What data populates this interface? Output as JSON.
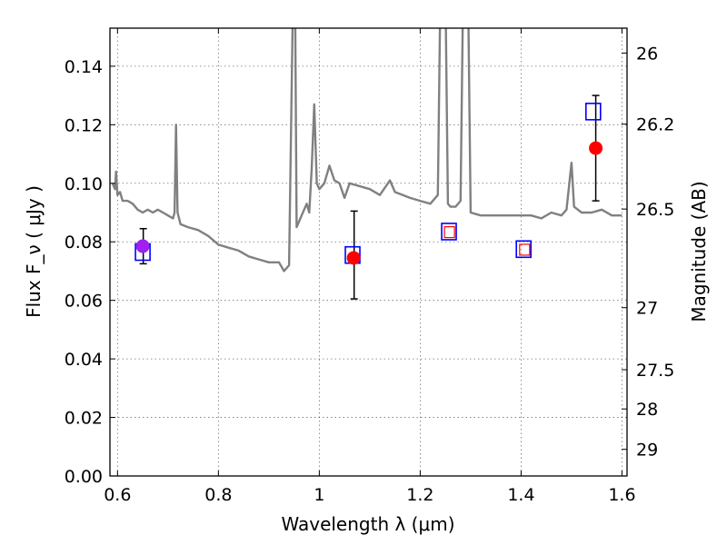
{
  "chart_data": {
    "type": "scatter",
    "title": "",
    "xlabel": "Wavelength  λ (μm)",
    "ylabel": "Flux  F_ν  ( μJy )",
    "y2label": "Magnitude (AB)",
    "xlim": [
      0.585,
      1.61
    ],
    "ylim": [
      0.0,
      0.153
    ],
    "grid": true,
    "x_ticks": [
      0.6,
      0.8,
      1.0,
      1.2,
      1.4,
      1.6
    ],
    "x_tick_labels": [
      "0.6",
      "0.8",
      "1",
      "1.2",
      "1.4",
      "1.6"
    ],
    "y_ticks": [
      0.0,
      0.02,
      0.04,
      0.06,
      0.08,
      0.1,
      0.12,
      0.14
    ],
    "y_tick_labels": [
      "0.00",
      "0.02",
      "0.04",
      "0.06",
      "0.08",
      "0.10",
      "0.12",
      "0.14"
    ],
    "y2_ticks": [
      {
        "label": "26",
        "flux": 0.1445
      },
      {
        "label": "26.2",
        "flux": 0.1202
      },
      {
        "label": "26.5",
        "flux": 0.0912
      },
      {
        "label": "27",
        "flux": 0.0575
      },
      {
        "label": "27.5",
        "flux": 0.0363
      },
      {
        "label": "28",
        "flux": 0.0229
      },
      {
        "label": "29",
        "flux": 0.0091
      }
    ],
    "series": [
      {
        "kind": "line",
        "color": "#808080",
        "points": [
          [
            0.59,
            0.1
          ],
          [
            0.595,
            0.098
          ],
          [
            0.597,
            0.104
          ],
          [
            0.6,
            0.096
          ],
          [
            0.605,
            0.097
          ],
          [
            0.61,
            0.094
          ],
          [
            0.62,
            0.094
          ],
          [
            0.63,
            0.093
          ],
          [
            0.64,
            0.091
          ],
          [
            0.65,
            0.09
          ],
          [
            0.66,
            0.091
          ],
          [
            0.67,
            0.09
          ],
          [
            0.68,
            0.091
          ],
          [
            0.69,
            0.09
          ],
          [
            0.7,
            0.089
          ],
          [
            0.71,
            0.088
          ],
          [
            0.713,
            0.09
          ],
          [
            0.716,
            0.12
          ],
          [
            0.719,
            0.09
          ],
          [
            0.725,
            0.086
          ],
          [
            0.74,
            0.085
          ],
          [
            0.76,
            0.084
          ],
          [
            0.78,
            0.082
          ],
          [
            0.8,
            0.079
          ],
          [
            0.82,
            0.078
          ],
          [
            0.84,
            0.077
          ],
          [
            0.86,
            0.075
          ],
          [
            0.88,
            0.074
          ],
          [
            0.9,
            0.073
          ],
          [
            0.92,
            0.073
          ],
          [
            0.93,
            0.07
          ],
          [
            0.94,
            0.072
          ],
          [
            0.948,
            0.165
          ],
          [
            0.952,
            0.165
          ],
          [
            0.955,
            0.085
          ],
          [
            0.965,
            0.089
          ],
          [
            0.975,
            0.093
          ],
          [
            0.98,
            0.09
          ],
          [
            0.985,
            0.105
          ],
          [
            0.99,
            0.127
          ],
          [
            0.995,
            0.1
          ],
          [
            1.0,
            0.098
          ],
          [
            1.01,
            0.1
          ],
          [
            1.02,
            0.106
          ],
          [
            1.03,
            0.101
          ],
          [
            1.04,
            0.1
          ],
          [
            1.05,
            0.095
          ],
          [
            1.06,
            0.1
          ],
          [
            1.08,
            0.099
          ],
          [
            1.1,
            0.098
          ],
          [
            1.12,
            0.096
          ],
          [
            1.14,
            0.101
          ],
          [
            1.15,
            0.097
          ],
          [
            1.18,
            0.095
          ],
          [
            1.2,
            0.094
          ],
          [
            1.22,
            0.093
          ],
          [
            1.235,
            0.096
          ],
          [
            1.24,
            0.165
          ],
          [
            1.25,
            0.165
          ],
          [
            1.255,
            0.093
          ],
          [
            1.26,
            0.092
          ],
          [
            1.27,
            0.092
          ],
          [
            1.28,
            0.094
          ],
          [
            1.285,
            0.165
          ],
          [
            1.295,
            0.165
          ],
          [
            1.3,
            0.09
          ],
          [
            1.32,
            0.089
          ],
          [
            1.34,
            0.089
          ],
          [
            1.36,
            0.089
          ],
          [
            1.38,
            0.089
          ],
          [
            1.4,
            0.089
          ],
          [
            1.42,
            0.089
          ],
          [
            1.44,
            0.088
          ],
          [
            1.46,
            0.09
          ],
          [
            1.48,
            0.089
          ],
          [
            1.49,
            0.091
          ],
          [
            1.5,
            0.107
          ],
          [
            1.505,
            0.092
          ],
          [
            1.52,
            0.09
          ],
          [
            1.54,
            0.09
          ],
          [
            1.56,
            0.091
          ],
          [
            1.58,
            0.089
          ],
          [
            1.6,
            0.089
          ]
        ]
      },
      {
        "kind": "open-square-blue",
        "color": "#0000ff",
        "points": [
          [
            0.65,
            0.0765
          ],
          [
            1.066,
            0.0755
          ],
          [
            1.257,
            0.0835
          ],
          [
            1.405,
            0.0775
          ],
          [
            1.543,
            0.1245
          ]
        ]
      },
      {
        "kind": "open-square-red",
        "color": "#ff0000",
        "points": [
          [
            1.258,
            0.0833
          ],
          [
            1.407,
            0.0773
          ]
        ]
      },
      {
        "kind": "filled-circle",
        "color": "#ff0000",
        "points": [
          [
            1.068,
            0.0745
          ],
          [
            1.548,
            0.112
          ]
        ]
      },
      {
        "kind": "filled-circle",
        "color": "#a020f0",
        "points": [
          [
            0.65,
            0.0785
          ]
        ]
      },
      {
        "kind": "errorbar",
        "color": "#000000",
        "bars": [
          {
            "x": 0.651,
            "low": 0.0725,
            "high": 0.0845
          },
          {
            "x": 1.069,
            "low": 0.0605,
            "high": 0.0905
          },
          {
            "x": 1.548,
            "low": 0.094,
            "high": 0.13
          }
        ]
      }
    ]
  }
}
